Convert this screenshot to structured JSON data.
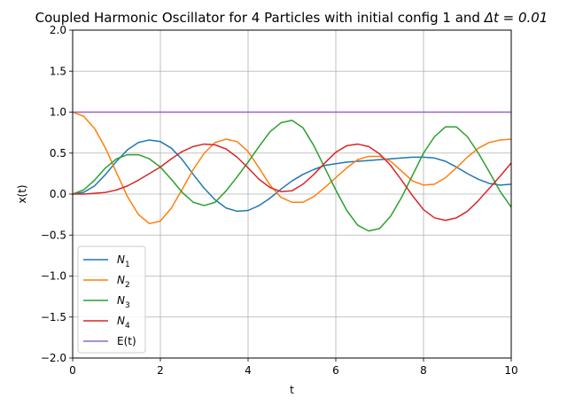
{
  "chart_data": {
    "type": "line",
    "title_prefix": "Coupled Harmonic Oscillator for 4 Particles with initial config 1 and ",
    "title_math": "Δt = 0.01",
    "xlabel": "t",
    "ylabel": "x(t)",
    "xlim": [
      0,
      10
    ],
    "ylim": [
      -2.0,
      2.0
    ],
    "xticks": [
      "0",
      "2",
      "4",
      "6",
      "8",
      "10"
    ],
    "yticks": [
      "−2.0",
      "−1.5",
      "−1.0",
      "−0.5",
      "0.0",
      "0.5",
      "1.0",
      "1.5",
      "2.0"
    ],
    "grid": true,
    "legend_position": "lower-left",
    "x": [
      0,
      0.25,
      0.5,
      0.75,
      1,
      1.25,
      1.5,
      1.75,
      2,
      2.25,
      2.5,
      2.75,
      3,
      3.25,
      3.5,
      3.75,
      4,
      4.25,
      4.5,
      4.75,
      5,
      5.25,
      5.5,
      5.75,
      6,
      6.25,
      6.5,
      6.75,
      7,
      7.25,
      7.5,
      7.75,
      8,
      8.25,
      8.5,
      8.75,
      9,
      9.25,
      9.5,
      9.75,
      10
    ],
    "series": [
      {
        "label_base": "N",
        "label_sub": "1",
        "color": "#1f77b4",
        "values": [
          0.0,
          0.02,
          0.1,
          0.24,
          0.4,
          0.54,
          0.63,
          0.66,
          0.64,
          0.56,
          0.42,
          0.24,
          0.07,
          -0.07,
          -0.17,
          -0.21,
          -0.2,
          -0.14,
          -0.05,
          0.06,
          0.16,
          0.24,
          0.3,
          0.35,
          0.37,
          0.39,
          0.4,
          0.41,
          0.42,
          0.43,
          0.44,
          0.45,
          0.45,
          0.44,
          0.4,
          0.33,
          0.25,
          0.18,
          0.13,
          0.11,
          0.12
        ]
      },
      {
        "label_base": "N",
        "label_sub": "2",
        "color": "#ff7f0e",
        "values": [
          1.0,
          0.95,
          0.8,
          0.56,
          0.26,
          -0.03,
          -0.25,
          -0.36,
          -0.33,
          -0.17,
          0.06,
          0.3,
          0.5,
          0.63,
          0.67,
          0.64,
          0.52,
          0.32,
          0.11,
          -0.04,
          -0.1,
          -0.1,
          -0.03,
          0.08,
          0.2,
          0.32,
          0.42,
          0.46,
          0.46,
          0.4,
          0.28,
          0.16,
          0.11,
          0.12,
          0.2,
          0.32,
          0.45,
          0.56,
          0.63,
          0.66,
          0.67
        ]
      },
      {
        "label_base": "N",
        "label_sub": "3",
        "color": "#2ca02c",
        "values": [
          0.0,
          0.05,
          0.17,
          0.32,
          0.43,
          0.48,
          0.48,
          0.43,
          0.33,
          0.18,
          0.02,
          -0.1,
          -0.14,
          -0.1,
          0.04,
          0.21,
          0.39,
          0.58,
          0.76,
          0.87,
          0.9,
          0.81,
          0.59,
          0.32,
          0.05,
          -0.2,
          -0.38,
          -0.45,
          -0.42,
          -0.27,
          -0.04,
          0.23,
          0.5,
          0.7,
          0.82,
          0.82,
          0.7,
          0.5,
          0.27,
          0.03,
          -0.16
        ]
      },
      {
        "label_base": "N",
        "label_sub": "4",
        "color": "#d62728",
        "values": [
          0.0,
          0.0,
          0.01,
          0.02,
          0.05,
          0.1,
          0.17,
          0.25,
          0.33,
          0.43,
          0.52,
          0.58,
          0.61,
          0.6,
          0.55,
          0.45,
          0.32,
          0.18,
          0.08,
          0.03,
          0.04,
          0.12,
          0.24,
          0.38,
          0.51,
          0.59,
          0.61,
          0.58,
          0.49,
          0.35,
          0.17,
          -0.02,
          -0.19,
          -0.29,
          -0.32,
          -0.29,
          -0.21,
          -0.08,
          0.07,
          0.22,
          0.38
        ]
      },
      {
        "label_base": "E(t)",
        "label_sub": "",
        "color": "#9467bd",
        "values": [
          1.0,
          1.0,
          1.0,
          1.0,
          1.0,
          1.0,
          1.0,
          1.0,
          1.0,
          1.0,
          1.0,
          1.0,
          1.0,
          1.0,
          1.0,
          1.0,
          1.0,
          1.0,
          1.0,
          1.0,
          1.0,
          1.0,
          1.0,
          1.0,
          1.0,
          1.0,
          1.0,
          1.0,
          1.0,
          1.0,
          1.0,
          1.0,
          1.0,
          1.0,
          1.0,
          1.0,
          1.0,
          1.0,
          1.0,
          1.0,
          1.0
        ]
      }
    ]
  }
}
